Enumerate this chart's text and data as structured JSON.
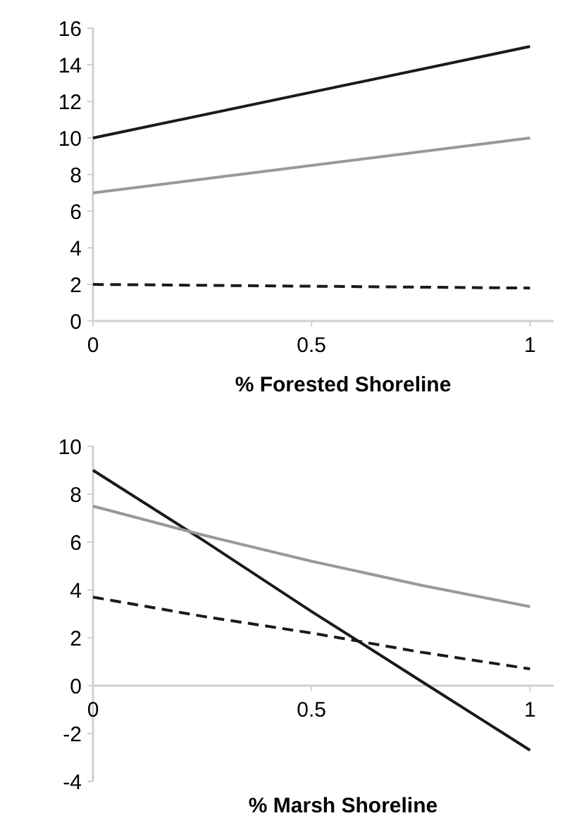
{
  "chart_data": [
    {
      "type": "line",
      "xlabel": "% Forested Shoreline",
      "x": [
        0,
        1
      ],
      "xlim": [
        0,
        1.08
      ],
      "xticks": [
        0,
        0.5,
        1
      ],
      "ylim": [
        0,
        16
      ],
      "yticks": [
        0,
        2,
        4,
        6,
        8,
        10,
        12,
        14,
        16
      ],
      "grid": false,
      "marker": "none",
      "series": [
        {
          "color": "#1a1a1a",
          "values": [
            10,
            15
          ],
          "line_style": "solid"
        },
        {
          "color": "#999999",
          "values": [
            7,
            10
          ],
          "line_style": "solid"
        },
        {
          "color": "#1a1a1a",
          "values": [
            2,
            1.8
          ],
          "line_style": "dashed"
        }
      ]
    },
    {
      "type": "line",
      "xlabel": "% Marsh Shoreline",
      "x": [
        0,
        0.25,
        0.5,
        0.75,
        1
      ],
      "xlim": [
        0,
        1.08
      ],
      "xticks": [
        0,
        0.5,
        1
      ],
      "ylim": [
        -4,
        10
      ],
      "yticks": [
        -4,
        -2,
        0,
        2,
        4,
        6,
        8,
        10
      ],
      "grid": false,
      "marker": "none",
      "series": [
        {
          "color": "#1a1a1a",
          "values": [
            9,
            6.1,
            3.1,
            0.2,
            -2.7
          ],
          "line_style": "solid"
        },
        {
          "color": "#999999",
          "values": [
            7.5,
            6.3,
            5.2,
            4.2,
            3.3
          ],
          "line_style": "solid"
        },
        {
          "color": "#1a1a1a",
          "values": [
            3.7,
            2.9,
            2.2,
            1.4,
            0.7
          ],
          "line_style": "dashed"
        }
      ]
    }
  ]
}
